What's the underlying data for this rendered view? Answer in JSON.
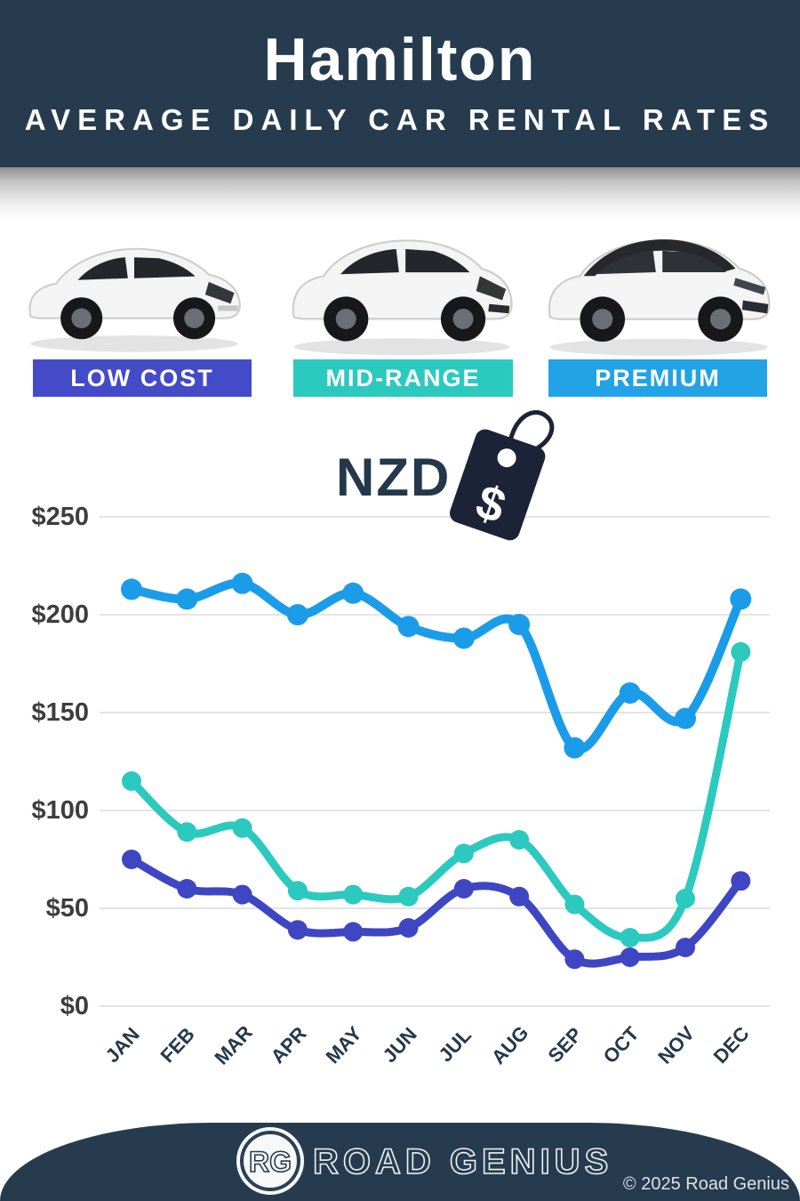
{
  "header": {
    "title": "Hamilton",
    "subtitle": "AVERAGE DAILY CAR RENTAL RATES"
  },
  "categories": [
    {
      "label": "LOW COST",
      "color": "#444bc8",
      "car": "white-hatchback-car"
    },
    {
      "label": "MID-RANGE",
      "color": "#2cc9bf",
      "car": "white-midsize-suv-car"
    },
    {
      "label": "PREMIUM",
      "color": "#22a3e5",
      "car": "white-premium-suv-black-roof-car"
    }
  ],
  "currency": {
    "label": "NZD",
    "icon": "price-tag-dollar-icon",
    "tag_symbol": "$"
  },
  "chart_data": {
    "type": "line",
    "title": "Hamilton average daily car rental rates (NZD)",
    "categories": [
      "JAN",
      "FEB",
      "MAR",
      "APR",
      "MAY",
      "JUN",
      "JUL",
      "AUG",
      "SEP",
      "OCT",
      "NOV",
      "DEC"
    ],
    "series": [
      {
        "name": "PREMIUM",
        "color": "#1b9ce8",
        "values": [
          213,
          208,
          216,
          200,
          211,
          194,
          188,
          195,
          132,
          160,
          147,
          208
        ]
      },
      {
        "name": "MID-RANGE",
        "color": "#2cc9bf",
        "values": [
          115,
          89,
          91,
          59,
          57,
          56,
          78,
          85,
          52,
          35,
          55,
          181
        ]
      },
      {
        "name": "LOW COST",
        "color": "#3e46c3",
        "values": [
          75,
          60,
          57,
          39,
          38,
          40,
          60,
          56,
          24,
          25,
          30,
          64
        ]
      }
    ],
    "yticks": [
      {
        "label": "$250",
        "value": 250
      },
      {
        "label": "$200",
        "value": 200
      },
      {
        "label": "$150",
        "value": 150
      },
      {
        "label": "$100",
        "value": 100
      },
      {
        "label": "$50",
        "value": 50
      },
      {
        "label": "$0",
        "value": 0
      }
    ],
    "ylim": [
      0,
      250
    ],
    "grid": true,
    "legend_position": "none",
    "grid_color": "#e4e4e4"
  },
  "footer": {
    "logo_initials": "RG",
    "brand": "ROAD GENIUS",
    "copyright": "© 2025 Road Genius"
  },
  "colors": {
    "header_background": "#263c4e",
    "footer_background": "#263c4e",
    "title_text": "#ffffff",
    "axis_text": "#3d3d3d",
    "month_text": "#24384a",
    "currency_text": "#24384a",
    "tag_fill": "#1c2336"
  }
}
